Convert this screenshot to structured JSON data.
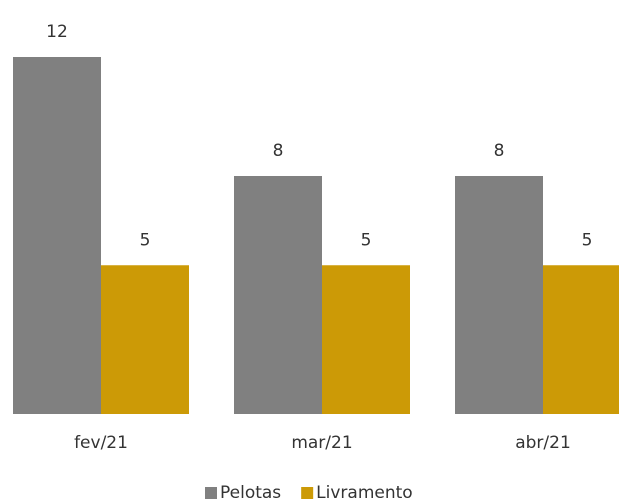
{
  "chart_data": {
    "type": "bar",
    "categories": [
      "fev/21",
      "mar/21",
      "abr/21"
    ],
    "series": [
      {
        "name": "Pelotas",
        "color": "#808080",
        "values": [
          12,
          8,
          8
        ]
      },
      {
        "name": "Livramento",
        "color": "#cc9a06",
        "values": [
          5,
          5,
          5
        ]
      }
    ],
    "ylim": [
      0,
      12
    ]
  }
}
